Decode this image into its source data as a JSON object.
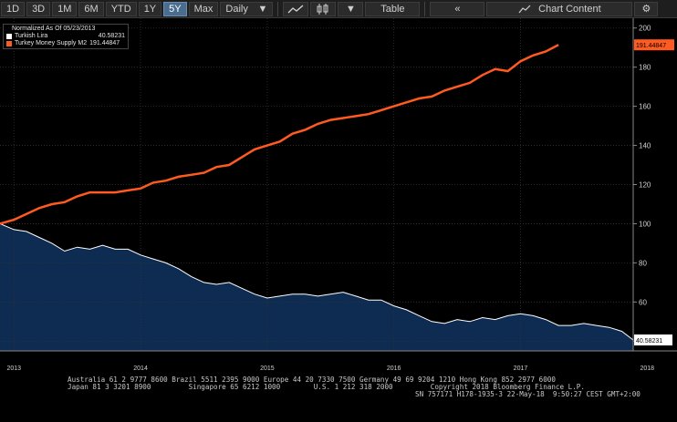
{
  "toolbar": {
    "ranges": [
      "1D",
      "3D",
      "1M",
      "6M",
      "YTD",
      "1Y",
      "5Y",
      "Max"
    ],
    "active_range": "5Y",
    "frequency": "Daily",
    "table_label": "Table",
    "chart_content_label": "Chart Content",
    "icons": [
      "line-chart-icon",
      "bar-style-icon",
      "collapse-icon",
      "settings-icon"
    ]
  },
  "legend": {
    "title": "Normalized As Of 05/23/2013",
    "items": [
      {
        "name": "Turkish Lira",
        "value": "40.58231",
        "color": "#ffffff"
      },
      {
        "name": "Turkey Money Supply M2",
        "value": "191.44847",
        "color": "#ff5a1f"
      }
    ]
  },
  "chart_data": {
    "type": "line",
    "ylim": [
      35,
      205
    ],
    "yticks": [
      40,
      60,
      80,
      100,
      120,
      140,
      160,
      180,
      200
    ],
    "ytick_labels": [
      "",
      "60",
      "80",
      "100",
      "120",
      "140",
      "160",
      "180",
      "200"
    ],
    "xlim": [
      2013.39,
      2018.39
    ],
    "xticks": [
      2013,
      2014,
      2015,
      2016,
      2017,
      2018
    ],
    "xtick_labels": [
      "2013",
      "2014",
      "2015",
      "2016",
      "2017",
      "2018"
    ],
    "grid": true,
    "legend_position": "top-left",
    "last_value_labels": [
      "191.44847",
      "40.58231"
    ],
    "series": [
      {
        "name": "Turkey Money Supply M2",
        "color": "#ff5a1f",
        "style": "line",
        "x": [
          2013.39,
          2013.5,
          2013.6,
          2013.7,
          2013.8,
          2013.9,
          2014.0,
          2014.1,
          2014.2,
          2014.3,
          2014.4,
          2014.5,
          2014.6,
          2014.7,
          2014.8,
          2014.9,
          2015.0,
          2015.1,
          2015.2,
          2015.3,
          2015.4,
          2015.5,
          2015.6,
          2015.7,
          2015.8,
          2015.9,
          2016.0,
          2016.1,
          2016.2,
          2016.3,
          2016.4,
          2016.5,
          2016.6,
          2016.7,
          2016.8,
          2016.9,
          2017.0,
          2017.1,
          2017.2,
          2017.3,
          2017.4,
          2017.5,
          2017.6,
          2017.7,
          2017.8
        ],
        "y": [
          100,
          102,
          105,
          108,
          110,
          111,
          114,
          116,
          116,
          116,
          117,
          118,
          121,
          122,
          124,
          125,
          126,
          129,
          130,
          134,
          138,
          140,
          142,
          146,
          148,
          151,
          153,
          154,
          155,
          156,
          158,
          160,
          162,
          164,
          165,
          168,
          170,
          172,
          176,
          179,
          178,
          183,
          186,
          188,
          191.4
        ]
      },
      {
        "name": "Turkish Lira",
        "color": "#ffffff",
        "style": "area",
        "fill": "#0e2b52",
        "x": [
          2013.39,
          2013.5,
          2013.6,
          2013.7,
          2013.8,
          2013.9,
          2014.0,
          2014.1,
          2014.2,
          2014.3,
          2014.4,
          2014.5,
          2014.6,
          2014.7,
          2014.8,
          2014.9,
          2015.0,
          2015.1,
          2015.2,
          2015.3,
          2015.4,
          2015.5,
          2015.6,
          2015.7,
          2015.8,
          2015.9,
          2016.0,
          2016.1,
          2016.2,
          2016.3,
          2016.4,
          2016.5,
          2016.6,
          2016.7,
          2016.8,
          2016.9,
          2017.0,
          2017.1,
          2017.2,
          2017.3,
          2017.4,
          2017.5,
          2017.6,
          2017.7,
          2017.8,
          2017.9,
          2018.0,
          2018.1,
          2018.2,
          2018.3,
          2018.39
        ],
        "y": [
          100,
          97,
          96,
          93,
          90,
          86,
          88,
          87,
          89,
          87,
          87,
          84,
          82,
          80,
          77,
          73,
          70,
          69,
          70,
          67,
          64,
          62,
          63,
          64,
          64,
          63,
          64,
          65,
          63,
          61,
          61,
          58,
          56,
          53,
          50,
          49,
          51,
          50,
          52,
          51,
          53,
          54,
          53,
          51,
          48,
          48,
          49,
          48,
          47,
          45,
          40.6
        ]
      }
    ]
  },
  "footer": {
    "line1": "Australia 61 2 9777 8600 Brazil 5511 2395 9000 Europe 44 20 7330 7500 Germany 49 69 9204 1210 Hong Kong 852 2977 6000",
    "line2a": "Japan 81 3 3201 8900         Singapore 65 6212 1000        U.S. 1 212 318 2000         Copyright 2018 Bloomberg Finance L.P.",
    "line2b": "SN 757171 H178-1935-3 22-May-18  9:50:27 CEST GMT+2:00"
  }
}
